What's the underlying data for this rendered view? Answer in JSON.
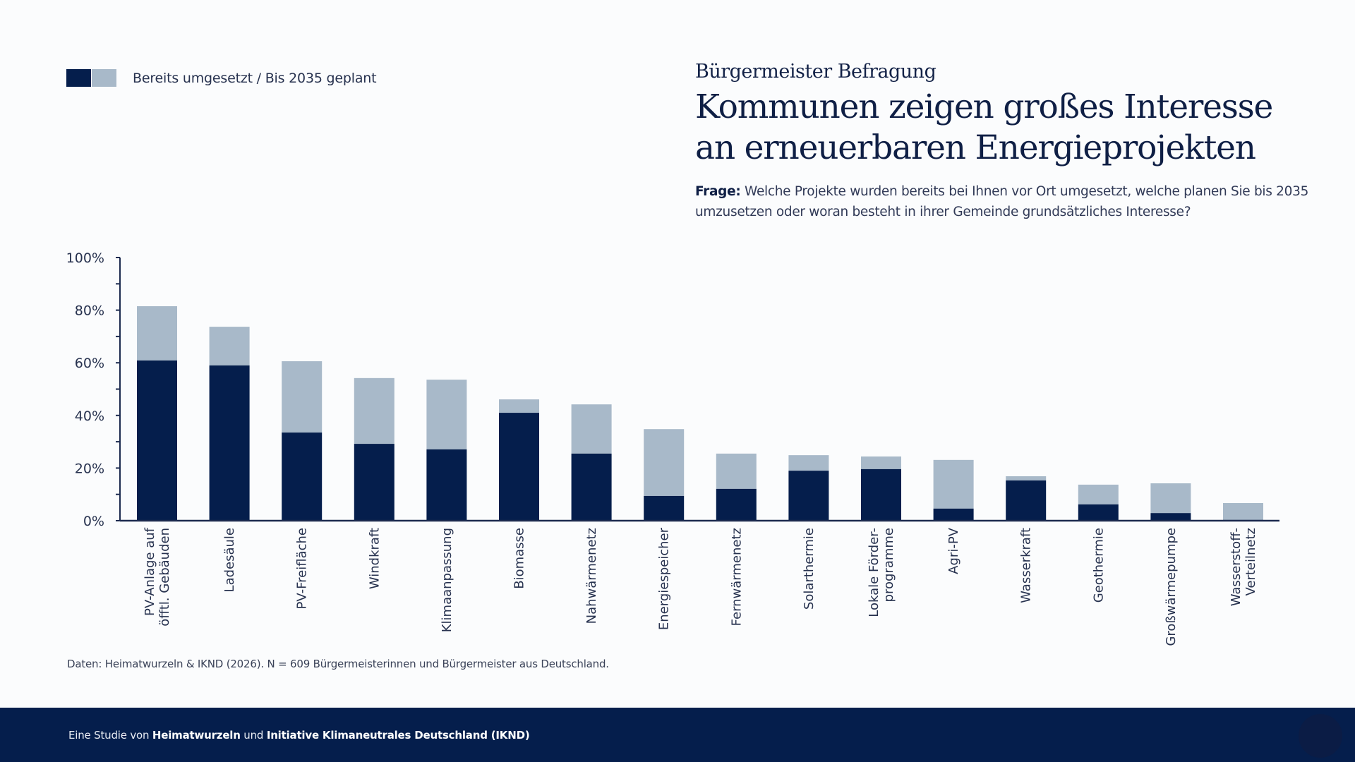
{
  "legend": {
    "label": "Bereits umgesetzt / Bis 2035 geplant",
    "colors": {
      "implemented": "#051e4c",
      "planned": "#a8b9c9"
    }
  },
  "header": {
    "kicker": "Bürgermeister Befragung",
    "title_line1": "Kommunen zeigen großes Interesse",
    "title_line2": "an erneuerbaren Energieprojekten",
    "question_label": "Frage:",
    "question_text": " Welche Projekte wurden bereits bei Ihnen vor Ort umgesetzt, welche planen Sie bis 2035 umzusetzen oder woran besteht in ihrer Gemeinde grundsätzliches Interesse?"
  },
  "source": "Daten: Heimatwurzeln & IKND (2026). N = 609 Bürgermeisterinnen und Bürgermeister aus Deutschland.",
  "footer": {
    "prefix": "Eine Studie von ",
    "org1": "Heimatwurzeln",
    "mid": " und ",
    "org2": "Initiative Klimaneutrales Deutschland (IKND)"
  },
  "chart_data": {
    "type": "bar",
    "stacked": true,
    "title": "Kommunen zeigen großes Interesse an erneuerbaren Energieprojekten",
    "xlabel": "",
    "ylabel": "",
    "ylim": [
      0,
      100
    ],
    "yticks": [
      0,
      20,
      40,
      60,
      80,
      100
    ],
    "ytick_labels": [
      "0%",
      "20%",
      "40%",
      "60%",
      "80%",
      "100%"
    ],
    "minor_tick_step": 10,
    "grid": false,
    "legend_position": "top-left",
    "categories": [
      [
        "PV-Anlage auf",
        "öfftl. Gebäuden"
      ],
      [
        "Ladesäule"
      ],
      [
        "PV-Freifläche"
      ],
      [
        "Windkraft"
      ],
      [
        "Klimaanpassung"
      ],
      [
        "Biomasse"
      ],
      [
        "Nahwärmenetz"
      ],
      [
        "Energiespeicher"
      ],
      [
        "Fernwärmenetz"
      ],
      [
        "Solarthermie"
      ],
      [
        "Lokale Förder-",
        "programme"
      ],
      [
        "Agri-PV"
      ],
      [
        "Wasserkraft"
      ],
      [
        "Geothermie"
      ],
      [
        "Großwärmepumpe"
      ],
      [
        "Wasserstoff-",
        "Verteilnetz"
      ]
    ],
    "series": [
      {
        "name": "Bereits umgesetzt",
        "color": "#051e4c",
        "values": [
          60.9,
          59.0,
          33.5,
          29.2,
          27.1,
          41.0,
          25.5,
          9.4,
          12.1,
          19.0,
          19.6,
          4.6,
          15.3,
          6.2,
          2.9,
          0.3
        ]
      },
      {
        "name": "Bis 2035 geplant",
        "color": "#a8b9c9",
        "values": [
          20.6,
          14.7,
          27.1,
          25.0,
          26.5,
          5.1,
          18.7,
          25.4,
          13.4,
          5.9,
          4.8,
          18.5,
          1.6,
          7.5,
          11.3,
          6.4
        ]
      }
    ]
  }
}
